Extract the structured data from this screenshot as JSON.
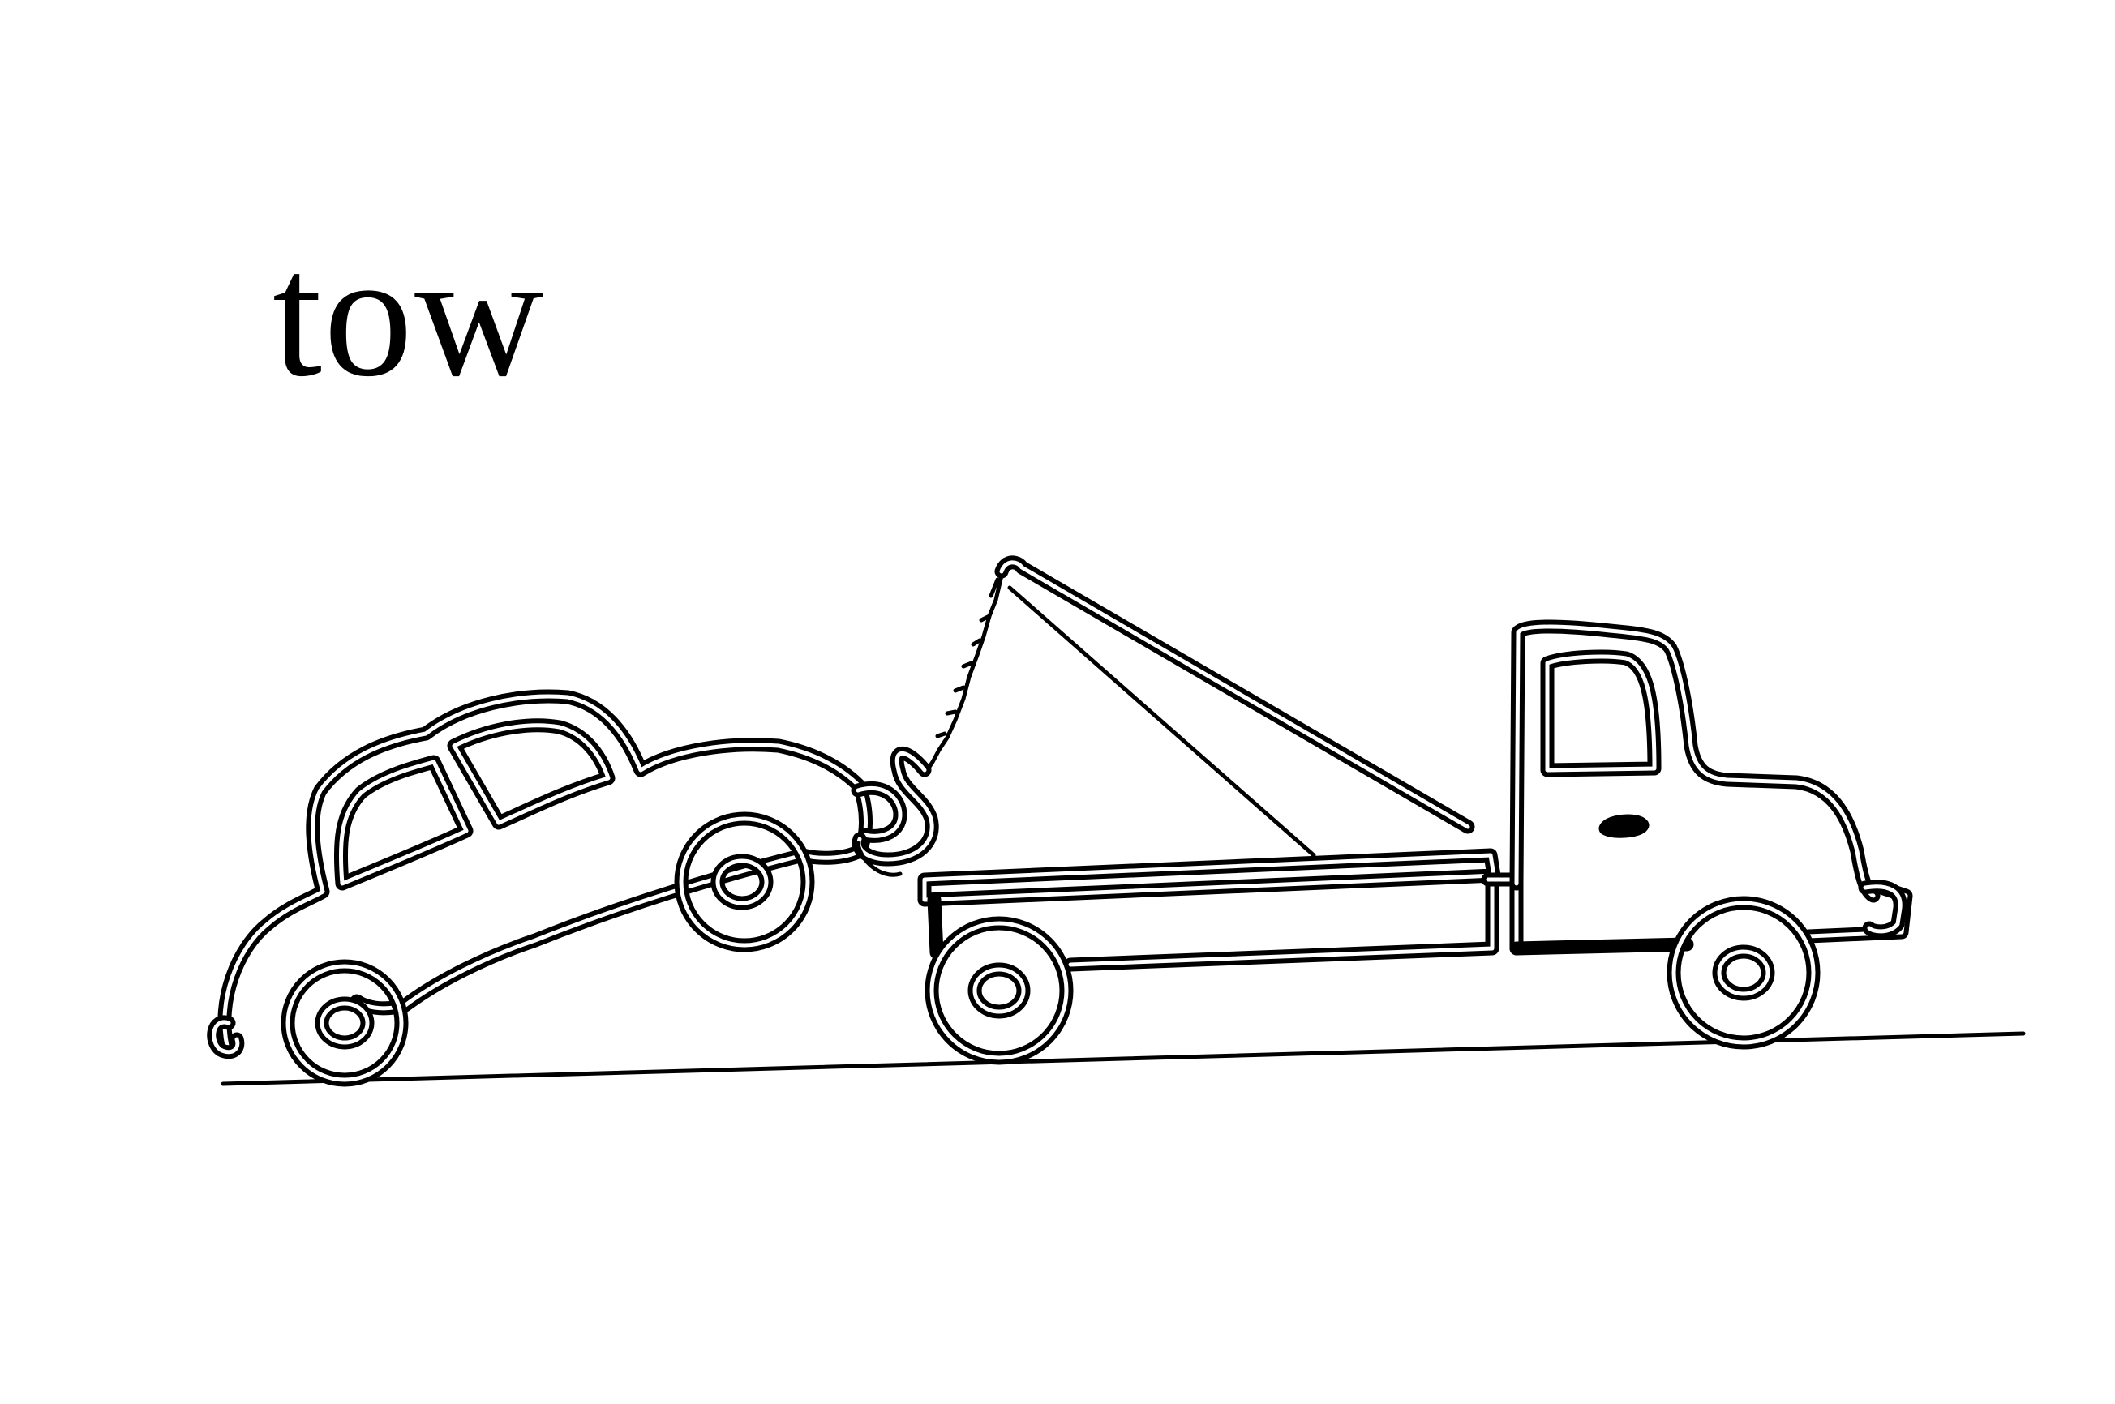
{
  "caption": {
    "word": "tow"
  },
  "illustration": {
    "subjects": [
      "car-icon",
      "tow-truck-icon",
      "tow-hook-icon",
      "road-line"
    ],
    "stroke_color": "#000000",
    "background_color": "#ffffff"
  }
}
